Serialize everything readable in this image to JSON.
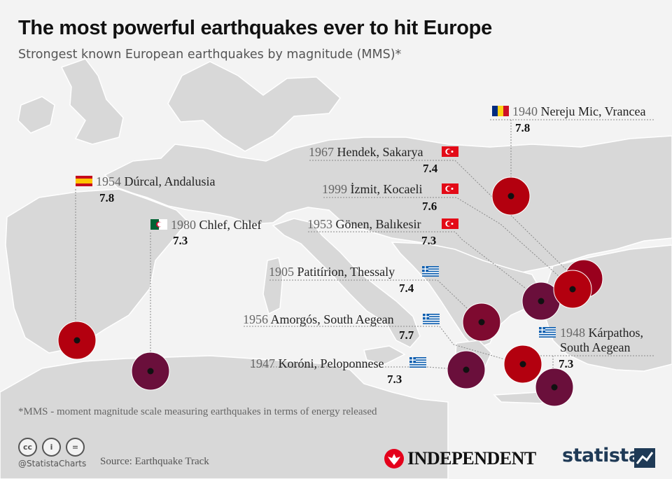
{
  "header": {
    "title": "The most powerful earthquakes ever to hit Europe",
    "subtitle": "Strongest known European earthquakes by magnitude (MMS)*"
  },
  "colors": {
    "strong": "#b3000f",
    "weaker": "#6a0f3b",
    "land": "#d6d6d6",
    "sea": "#f3f3f3"
  },
  "quakes": [
    {
      "year": "1954",
      "place": "Dúrcal, Andalusia",
      "magnitude": "7.8",
      "flag": "spain-flag"
    },
    {
      "year": "1980",
      "place": "Chlef, Chlef",
      "magnitude": "7.3",
      "flag": "algeria-flag"
    },
    {
      "year": "1940",
      "place": "Nereju Mic, Vrancea",
      "magnitude": "7.8",
      "flag": "romania-flag"
    },
    {
      "year": "1967",
      "place": "Hendek, Sakarya",
      "magnitude": "7.4",
      "flag": "turkey-flag"
    },
    {
      "year": "1999",
      "place": "İzmit, Kocaeli",
      "magnitude": "7.6",
      "flag": "turkey-flag"
    },
    {
      "year": "1953",
      "place": "Gönen, Balıkesir",
      "magnitude": "7.3",
      "flag": "turkey-flag"
    },
    {
      "year": "1905",
      "place": "Patitírion, Thessaly",
      "magnitude": "7.4",
      "flag": "greece-flag"
    },
    {
      "year": "1956",
      "place": "Amorgós, South Aegean",
      "magnitude": "7.7",
      "flag": "greece-flag"
    },
    {
      "year": "1947",
      "place": "Koróni, Peloponnese",
      "magnitude": "7.3",
      "flag": "greece-flag"
    },
    {
      "year": "1948",
      "place": "Kárpathos,",
      "place_line2": "South Aegean",
      "magnitude": "7.3",
      "flag": "greece-flag"
    }
  ],
  "footer": {
    "footnote": "*MMS - moment magnitude scale measuring earthquakes in terms of energy released",
    "handle": "@StatistaCharts",
    "source": "Source: Earthquake Track",
    "license_icons": [
      "cc",
      "i",
      "="
    ],
    "partner": "INDEPENDENT",
    "brand": "statista"
  }
}
